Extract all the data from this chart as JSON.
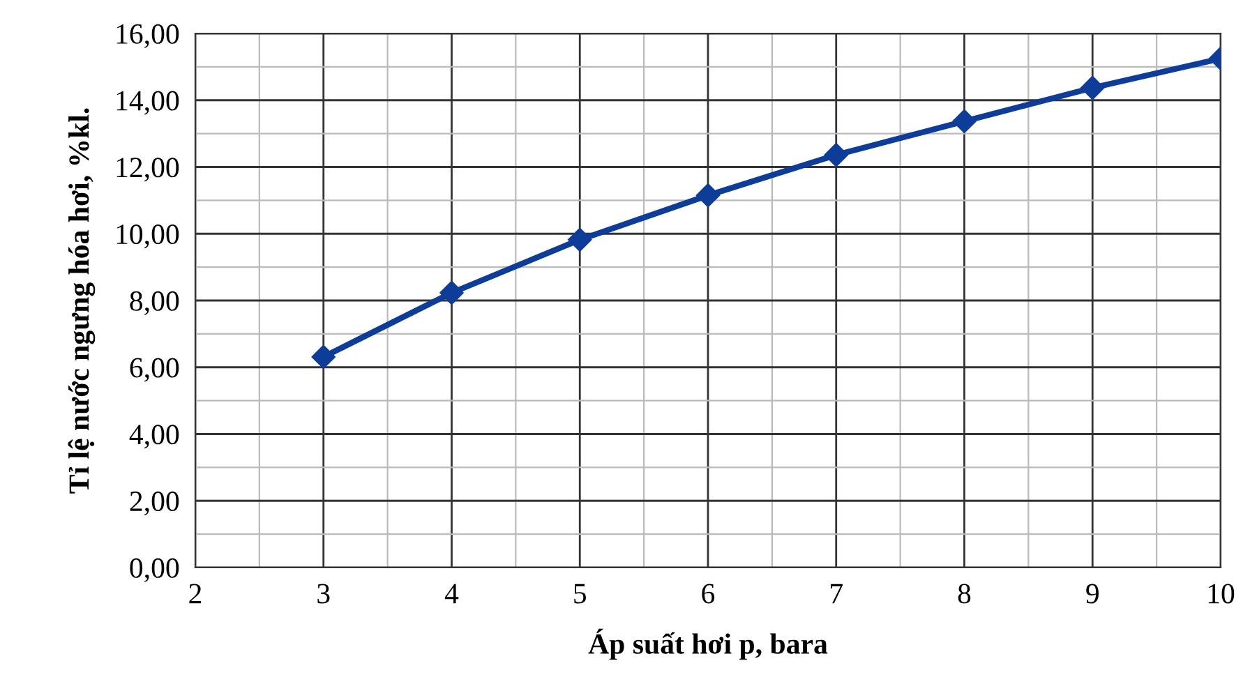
{
  "chart_data": {
    "type": "line",
    "xlabel": "Áp suất hơi p, bara",
    "ylabel": "Tỉ lệ nước ngưng hóa hơi, %kl.",
    "x": [
      3,
      4,
      5,
      6,
      7,
      8,
      9,
      10
    ],
    "series": [
      {
        "color": "#0d3d99",
        "values": [
          6.31,
          8.23,
          9.82,
          11.15,
          12.36,
          13.37,
          14.37,
          15.25
        ]
      }
    ],
    "xlim": [
      2,
      10
    ],
    "xticks": [
      2,
      3,
      4,
      5,
      6,
      7,
      8,
      9,
      10
    ],
    "ylim": [
      0,
      16
    ],
    "yticks": [
      {
        "value": 0,
        "label": "0,00"
      },
      {
        "value": 2,
        "label": "2,00"
      },
      {
        "value": 4,
        "label": "4,00"
      },
      {
        "value": 6,
        "label": "6,00"
      },
      {
        "value": 8,
        "label": "8,00"
      },
      {
        "value": 10,
        "label": "10,00"
      },
      {
        "value": 12,
        "label": "12,00"
      },
      {
        "value": 14,
        "label": "14,00"
      },
      {
        "value": 16,
        "label": "16,00"
      }
    ],
    "grid": true,
    "marker": "diamond",
    "line_style": "solid",
    "legend": false
  }
}
